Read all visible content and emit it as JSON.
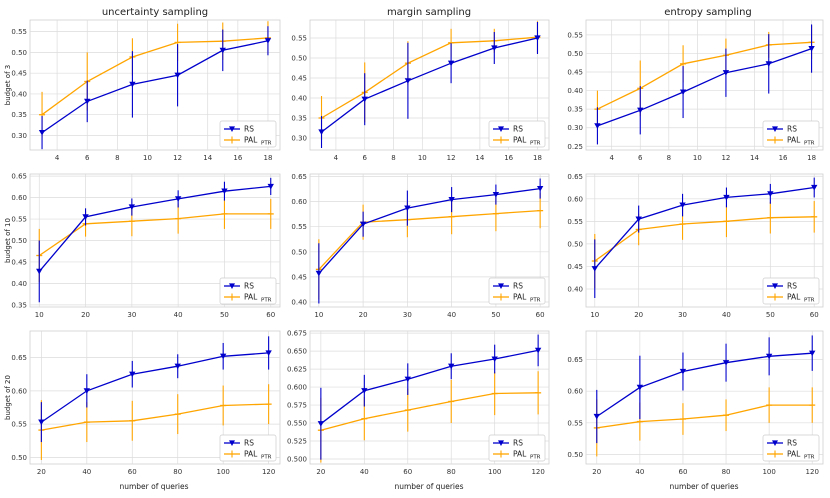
{
  "colors": {
    "rs": "#0000cc",
    "pal": "#ffa500",
    "grid": "#dcdcdc",
    "frame": "#cfcfcf"
  },
  "figure": {
    "col_titles": [
      "uncertainty sampling",
      "margin sampling",
      "entropy sampling"
    ],
    "row_labels": [
      "budget of 3",
      "budget of 10",
      "budget of 20"
    ],
    "xlabel": "number of queries",
    "legend": {
      "rs": "RS",
      "pal": "PAL",
      "pal_sub": "PTR"
    }
  },
  "chart_data": [
    {
      "type": "line",
      "row": 0,
      "col": 0,
      "x": [
        3,
        6,
        9,
        12,
        15,
        18
      ],
      "xticks": [
        4,
        6,
        8,
        10,
        12,
        14,
        16,
        18
      ],
      "xlim": [
        2.2,
        18.8
      ],
      "ylim": [
        0.265,
        0.578
      ],
      "yticks": [
        0.3,
        0.35,
        0.4,
        0.45,
        0.5,
        0.55
      ],
      "ylabel": "budget of 3",
      "series": [
        {
          "name": "RS",
          "values": [
            0.307,
            0.382,
            0.423,
            0.445,
            0.505,
            0.528
          ],
          "err": [
            0.04,
            0.05,
            0.08,
            0.075,
            0.05,
            0.035
          ]
        },
        {
          "name": "PAL_PTR",
          "values": [
            0.35,
            0.43,
            0.489,
            0.524,
            0.527,
            0.535
          ],
          "err": [
            0.055,
            0.07,
            0.045,
            0.045,
            0.045,
            0.04
          ]
        }
      ]
    },
    {
      "type": "line",
      "row": 0,
      "col": 1,
      "x": [
        3,
        6,
        9,
        12,
        15,
        18
      ],
      "xticks": [
        4,
        6,
        8,
        10,
        12,
        14,
        16,
        18
      ],
      "xlim": [
        2.2,
        18.8
      ],
      "ylim": [
        0.27,
        0.595
      ],
      "yticks": [
        0.3,
        0.35,
        0.4,
        0.45,
        0.5,
        0.55
      ],
      "ylabel": "",
      "series": [
        {
          "name": "RS",
          "values": [
            0.315,
            0.397,
            0.443,
            0.487,
            0.525,
            0.55
          ],
          "err": [
            0.04,
            0.065,
            0.095,
            0.05,
            0.04,
            0.04
          ]
        },
        {
          "name": "PAL_PTR",
          "values": [
            0.35,
            0.414,
            0.487,
            0.538,
            0.543,
            0.552
          ],
          "err": [
            0.055,
            0.075,
            0.055,
            0.035,
            0.03,
            0.04
          ]
        }
      ]
    },
    {
      "type": "line",
      "row": 0,
      "col": 2,
      "x": [
        3,
        6,
        9,
        12,
        15,
        18
      ],
      "xticks": [
        4,
        6,
        8,
        10,
        12,
        14,
        16,
        18
      ],
      "xlim": [
        2.2,
        18.8
      ],
      "ylim": [
        0.24,
        0.59
      ],
      "yticks": [
        0.25,
        0.3,
        0.35,
        0.4,
        0.45,
        0.5,
        0.55
      ],
      "ylabel": "",
      "series": [
        {
          "name": "RS",
          "values": [
            0.305,
            0.347,
            0.396,
            0.448,
            0.472,
            0.513
          ],
          "err": [
            0.05,
            0.065,
            0.07,
            0.065,
            0.08,
            0.065
          ]
        },
        {
          "name": "PAL_PTR",
          "values": [
            0.35,
            0.406,
            0.472,
            0.495,
            0.523,
            0.53
          ],
          "err": [
            0.05,
            0.075,
            0.05,
            0.045,
            0.035,
            0.045
          ]
        }
      ]
    },
    {
      "type": "line",
      "row": 1,
      "col": 0,
      "x": [
        10,
        20,
        30,
        40,
        50,
        60
      ],
      "xticks": [
        10,
        20,
        30,
        40,
        50,
        60
      ],
      "xlim": [
        8,
        62
      ],
      "ylim": [
        0.345,
        0.655
      ],
      "yticks": [
        0.35,
        0.4,
        0.45,
        0.5,
        0.55,
        0.6,
        0.65
      ],
      "ylabel": "budget of 10",
      "series": [
        {
          "name": "RS",
          "values": [
            0.428,
            0.555,
            0.578,
            0.597,
            0.615,
            0.626
          ],
          "err": [
            0.072,
            0.02,
            0.02,
            0.02,
            0.022,
            0.02
          ]
        },
        {
          "name": "PAL_PTR",
          "values": [
            0.465,
            0.539,
            0.545,
            0.551,
            0.562,
            0.562
          ],
          "err": [
            0.062,
            0.03,
            0.035,
            0.035,
            0.035,
            0.035
          ]
        }
      ]
    },
    {
      "type": "line",
      "row": 1,
      "col": 1,
      "x": [
        10,
        20,
        30,
        40,
        50,
        60
      ],
      "xticks": [
        10,
        20,
        30,
        40,
        50,
        60
      ],
      "xlim": [
        8,
        62
      ],
      "ylim": [
        0.39,
        0.655
      ],
      "yticks": [
        0.4,
        0.45,
        0.5,
        0.55,
        0.6,
        0.65
      ],
      "ylabel": "",
      "series": [
        {
          "name": "RS",
          "values": [
            0.457,
            0.555,
            0.587,
            0.604,
            0.614,
            0.626
          ],
          "err": [
            0.06,
            0.025,
            0.035,
            0.025,
            0.02,
            0.02
          ]
        },
        {
          "name": "PAL_PTR",
          "values": [
            0.465,
            0.559,
            0.564,
            0.57,
            0.576,
            0.582
          ],
          "err": [
            0.06,
            0.035,
            0.035,
            0.035,
            0.035,
            0.035
          ]
        }
      ]
    },
    {
      "type": "line",
      "row": 1,
      "col": 2,
      "x": [
        10,
        20,
        30,
        40,
        50,
        60
      ],
      "xticks": [
        10,
        20,
        30,
        40,
        50,
        60
      ],
      "xlim": [
        8,
        62
      ],
      "ylim": [
        0.36,
        0.655
      ],
      "yticks": [
        0.4,
        0.45,
        0.5,
        0.55,
        0.6,
        0.65
      ],
      "ylabel": "",
      "series": [
        {
          "name": "RS",
          "values": [
            0.445,
            0.555,
            0.586,
            0.603,
            0.611,
            0.625
          ],
          "err": [
            0.065,
            0.03,
            0.025,
            0.022,
            0.022,
            0.022
          ]
        },
        {
          "name": "PAL_PTR",
          "values": [
            0.462,
            0.532,
            0.544,
            0.55,
            0.558,
            0.56
          ],
          "err": [
            0.06,
            0.035,
            0.035,
            0.035,
            0.035,
            0.035
          ]
        }
      ]
    },
    {
      "type": "line",
      "row": 2,
      "col": 0,
      "x": [
        20,
        40,
        60,
        80,
        100,
        120
      ],
      "xticks": [
        20,
        40,
        60,
        80,
        100,
        120
      ],
      "xlim": [
        15,
        125
      ],
      "ylim": [
        0.49,
        0.69
      ],
      "yticks": [
        0.5,
        0.55,
        0.6,
        0.65
      ],
      "ylabel": "budget of 20",
      "series": [
        {
          "name": "RS",
          "values": [
            0.553,
            0.6,
            0.625,
            0.637,
            0.652,
            0.657
          ],
          "err": [
            0.03,
            0.025,
            0.02,
            0.018,
            0.02,
            0.025
          ]
        },
        {
          "name": "PAL_PTR",
          "values": [
            0.541,
            0.553,
            0.555,
            0.565,
            0.578,
            0.58
          ],
          "err": [
            0.045,
            0.03,
            0.03,
            0.03,
            0.03,
            0.03
          ]
        }
      ]
    },
    {
      "type": "line",
      "row": 2,
      "col": 1,
      "x": [
        20,
        40,
        60,
        80,
        100,
        120
      ],
      "xticks": [
        20,
        40,
        60,
        80,
        100,
        120
      ],
      "xlim": [
        15,
        125
      ],
      "ylim": [
        0.493,
        0.678
      ],
      "yticks": [
        0.5,
        0.525,
        0.55,
        0.575,
        0.6,
        0.625,
        0.65,
        0.675
      ],
      "ylabel": "",
      "series": [
        {
          "name": "RS",
          "values": [
            0.549,
            0.595,
            0.611,
            0.629,
            0.639,
            0.651
          ],
          "err": [
            0.05,
            0.022,
            0.022,
            0.018,
            0.02,
            0.022
          ]
        },
        {
          "name": "PAL_PTR",
          "values": [
            0.54,
            0.556,
            0.568,
            0.58,
            0.591,
            0.592
          ],
          "err": [
            0.045,
            0.03,
            0.03,
            0.03,
            0.03,
            0.03
          ]
        }
      ]
    },
    {
      "type": "line",
      "row": 2,
      "col": 2,
      "x": [
        20,
        40,
        60,
        80,
        100,
        120
      ],
      "xticks": [
        20,
        40,
        60,
        80,
        100,
        120
      ],
      "xlim": [
        15,
        125
      ],
      "ylim": [
        0.485,
        0.695
      ],
      "yticks": [
        0.5,
        0.55,
        0.6,
        0.65
      ],
      "ylabel": "",
      "series": [
        {
          "name": "RS",
          "values": [
            0.56,
            0.606,
            0.631,
            0.645,
            0.655,
            0.66
          ],
          "err": [
            0.042,
            0.05,
            0.03,
            0.03,
            0.03,
            0.028
          ]
        },
        {
          "name": "PAL_PTR",
          "values": [
            0.542,
            0.552,
            0.556,
            0.562,
            0.578,
            0.578
          ],
          "err": [
            0.045,
            0.03,
            0.025,
            0.025,
            0.028,
            0.028
          ]
        }
      ]
    }
  ]
}
